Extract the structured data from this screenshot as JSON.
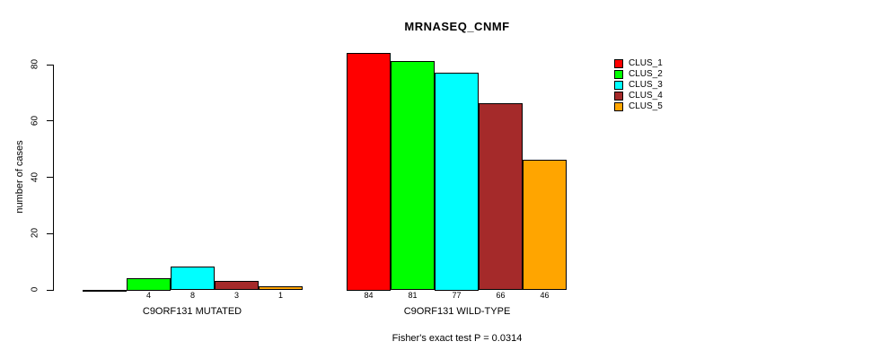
{
  "chart_data": {
    "type": "bar",
    "title": "MRNASEQ_CNMF",
    "ylabel": "number of cases",
    "xlabel": "",
    "categories": [
      "C9ORF131 MUTATED",
      "C9ORF131 WILD-TYPE"
    ],
    "series": [
      {
        "name": "CLUS_1",
        "color": "#FF0000",
        "values": [
          0,
          84
        ]
      },
      {
        "name": "CLUS_2",
        "color": "#00FF00",
        "values": [
          4,
          81
        ]
      },
      {
        "name": "CLUS_3",
        "color": "#00FFFF",
        "values": [
          8,
          77
        ]
      },
      {
        "name": "CLUS_4",
        "color": "#A52A2A",
        "values": [
          3,
          66
        ]
      },
      {
        "name": "CLUS_5",
        "color": "#FFA500",
        "values": [
          1,
          46
        ]
      }
    ],
    "bar_value_labels": [
      "4",
      "8",
      "3",
      "1",
      "84",
      "81",
      "77",
      "66",
      "46"
    ],
    "yticks": [
      0,
      20,
      40,
      60,
      80
    ],
    "ylim": [
      0,
      88
    ],
    "grid": false,
    "legend_position": "right",
    "legend_entries": [
      "CLUS_1",
      "CLUS_2",
      "CLUS_3",
      "CLUS_4",
      "CLUS_5"
    ],
    "annotation": "Fisher's exact test P = 0.0314"
  }
}
